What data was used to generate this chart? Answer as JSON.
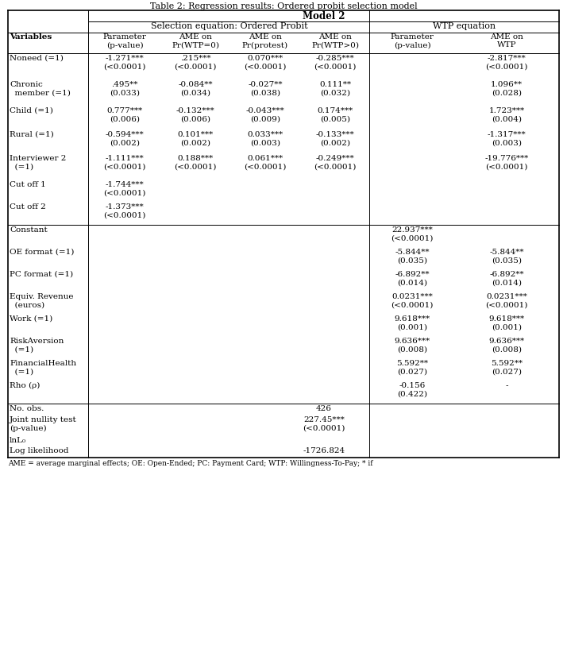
{
  "title": "Table 2: Regression results: Ordered probit selection model",
  "rows": [
    {
      "label": "Noneed (=1)",
      "label2": "",
      "c1": "-1.271***",
      "c1p": "(<0.0001)",
      "c2": ".215***",
      "c2p": "(<0.0001)",
      "c3": "0.070***",
      "c3p": "(<0.0001)",
      "c4": "-0.285***",
      "c4p": "(<0.0001)",
      "c5": "",
      "c5p": "",
      "c6": "-2.817***",
      "c6p": "(<0.0001)"
    },
    {
      "label": "Chronic",
      "label2": "  member (=1)",
      "c1": ".495**",
      "c1p": "(0.033)",
      "c2": "-0.084**",
      "c2p": "(0.034)",
      "c3": "-0.027**",
      "c3p": "(0.038)",
      "c4": "0.111**",
      "c4p": "(0.032)",
      "c5": "",
      "c5p": "",
      "c6": "1.096**",
      "c6p": "(0.028)"
    },
    {
      "label": "Child (=1)",
      "label2": "",
      "c1": "0.777***",
      "c1p": "(0.006)",
      "c2": "-0.132***",
      "c2p": "(0.006)",
      "c3": "-0.043***",
      "c3p": "(0.009)",
      "c4": "0.174***",
      "c4p": "(0.005)",
      "c5": "",
      "c5p": "",
      "c6": "1.723***",
      "c6p": "(0.004)"
    },
    {
      "label": "Rural (=1)",
      "label2": "",
      "c1": "-0.594***",
      "c1p": "(0.002)",
      "c2": "0.101***",
      "c2p": "(0.002)",
      "c3": "0.033***",
      "c3p": "(0.003)",
      "c4": "-0.133***",
      "c4p": "(0.002)",
      "c5": "",
      "c5p": "",
      "c6": "-1.317***",
      "c6p": "(0.003)"
    },
    {
      "label": "Interviewer 2",
      "label2": "  (=1)",
      "c1": "-1.111***",
      "c1p": "(<0.0001)",
      "c2": "0.188***",
      "c2p": "(<0.0001)",
      "c3": "0.061***",
      "c3p": "(<0.0001)",
      "c4": "-0.249***",
      "c4p": "(<0.0001)",
      "c5": "",
      "c5p": "",
      "c6": "-19.776***",
      "c6p": "(<0.0001)"
    },
    {
      "label": "Cut off 1",
      "label2": "",
      "c1": "-1.744***",
      "c1p": "(<0.0001)",
      "c2": "",
      "c2p": "",
      "c3": "",
      "c3p": "",
      "c4": "",
      "c4p": "",
      "c5": "",
      "c5p": "",
      "c6": "",
      "c6p": ""
    },
    {
      "label": "Cut off 2",
      "label2": "",
      "c1": "-1.373***",
      "c1p": "(<0.0001)",
      "c2": "",
      "c2p": "",
      "c3": "",
      "c3p": "",
      "c4": "",
      "c4p": "",
      "c5": "",
      "c5p": "",
      "c6": "",
      "c6p": ""
    },
    {
      "label": "Constant",
      "label2": "",
      "c1": "",
      "c1p": "",
      "c2": "",
      "c2p": "",
      "c3": "",
      "c3p": "",
      "c4": "",
      "c4p": "",
      "c5": "22.937***",
      "c5p": "(<0.0001)",
      "c6": "",
      "c6p": ""
    },
    {
      "label": "OE format (=1)",
      "label2": "",
      "c1": "",
      "c1p": "",
      "c2": "",
      "c2p": "",
      "c3": "",
      "c3p": "",
      "c4": "",
      "c4p": "",
      "c5": "-5.844**",
      "c5p": "(0.035)",
      "c6": "-5.844**",
      "c6p": "(0.035)"
    },
    {
      "label": "PC format (=1)",
      "label2": "",
      "c1": "",
      "c1p": "",
      "c2": "",
      "c2p": "",
      "c3": "",
      "c3p": "",
      "c4": "",
      "c4p": "",
      "c5": "-6.892**",
      "c5p": "(0.014)",
      "c6": "-6.892**",
      "c6p": "(0.014)"
    },
    {
      "label": "Equiv. Revenue",
      "label2": "  (euros)",
      "c1": "",
      "c1p": "",
      "c2": "",
      "c2p": "",
      "c3": "",
      "c3p": "",
      "c4": "",
      "c4p": "",
      "c5": "0.0231***",
      "c5p": "(<0.0001)",
      "c6": "0.0231***",
      "c6p": "(<0.0001)"
    },
    {
      "label": "Work (=1)",
      "label2": "",
      "c1": "",
      "c1p": "",
      "c2": "",
      "c2p": "",
      "c3": "",
      "c3p": "",
      "c4": "",
      "c4p": "",
      "c5": "9.618***",
      "c5p": "(0.001)",
      "c6": "9.618***",
      "c6p": "(0.001)"
    },
    {
      "label": "RiskAversion",
      "label2": "  (=1)",
      "c1": "",
      "c1p": "",
      "c2": "",
      "c2p": "",
      "c3": "",
      "c3p": "",
      "c4": "",
      "c4p": "",
      "c5": "9.636***",
      "c5p": "(0.008)",
      "c6": "9.636***",
      "c6p": "(0.008)"
    },
    {
      "label": "FinancialHealth",
      "label2": "  (=1)",
      "c1": "",
      "c1p": "",
      "c2": "",
      "c2p": "",
      "c3": "",
      "c3p": "",
      "c4": "",
      "c4p": "",
      "c5": "5.592**",
      "c5p": "(0.027)",
      "c6": "5.592**",
      "c6p": "(0.027)"
    },
    {
      "label": "Rho (ρ)",
      "label2": "",
      "c1": "",
      "c1p": "",
      "c2": "",
      "c2p": "",
      "c3": "",
      "c3p": "",
      "c4": "",
      "c4p": "",
      "c5": "-0.156",
      "c5p": "(0.422)",
      "c6": "-",
      "c6p": ""
    }
  ],
  "footer": [
    {
      "label": "No. obs.",
      "label2": "",
      "value": "426",
      "value2": ""
    },
    {
      "label": "Joint nullity test",
      "label2": "(p-value)",
      "value": "227.45***",
      "value2": "(<0.0001)"
    },
    {
      "label": "lnL₀",
      "label2": "",
      "value": "",
      "value2": ""
    },
    {
      "label": "Log likelihood",
      "label2": "",
      "value": "-1726.824",
      "value2": ""
    }
  ],
  "footnote": "AME = average marginal effects; OE: Open-Ended; PC: Payment Card; WTP: Willingness-To-Pay; * if",
  "lw_thick": 1.2,
  "lw_thin": 0.7,
  "bg": "#ffffff",
  "font": "DejaVu Serif",
  "fs_title": 8.0,
  "fs_header": 8.0,
  "fs_subheader": 7.5,
  "fs_cell": 7.5,
  "fs_footnote": 6.5
}
